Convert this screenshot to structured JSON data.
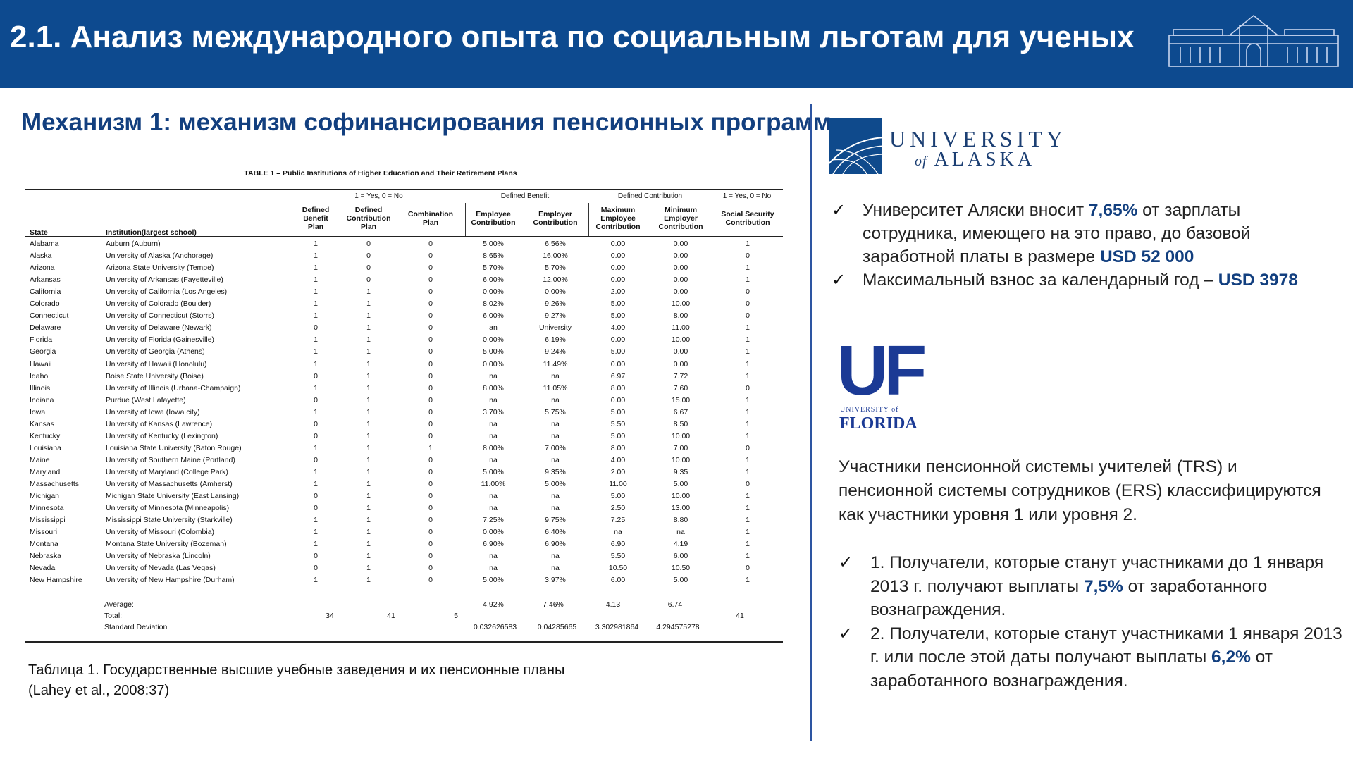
{
  "header": {
    "title": "2.1. Анализ международного опыта по социальным льготам для ученых"
  },
  "subtitle": "Механизм 1: механизм софинансирования пенсионных программ",
  "table": {
    "title": "TABLE 1 – Public Institutions of Higher Education and Their Retirement Plans",
    "groups": [
      "1 = Yes, 0 = No",
      "Defined Benefit",
      "Defined Contribution",
      "1 = Yes, 0 = No"
    ],
    "headers": {
      "state": "State",
      "institution": "Institution(largest school)",
      "db_plan": [
        "Defined",
        "Benefit",
        "Plan"
      ],
      "dc_plan": [
        "Defined",
        "Contribution",
        "Plan"
      ],
      "combo": [
        "Combination",
        "Plan"
      ],
      "emp_contrib": [
        "Employee",
        "Contribution"
      ],
      "empr_contrib": [
        "Employer",
        "Contribution"
      ],
      "max_emp": [
        "Maximum",
        "Employee",
        "Contribution"
      ],
      "min_empr": [
        "Minimum",
        "Employer",
        "Contribution"
      ],
      "ss": [
        "Social Security",
        "Contribution"
      ]
    },
    "rows": [
      [
        "Alabama",
        "Auburn (Auburn)",
        "1",
        "0",
        "0",
        "5.00%",
        "6.56%",
        "0.00",
        "0.00",
        "1"
      ],
      [
        "Alaska",
        "University of Alaska (Anchorage)",
        "1",
        "0",
        "0",
        "8.65%",
        "16.00%",
        "0.00",
        "0.00",
        "0"
      ],
      [
        "Arizona",
        "Arizona State University (Tempe)",
        "1",
        "0",
        "0",
        "5.70%",
        "5.70%",
        "0.00",
        "0.00",
        "1"
      ],
      [
        "Arkansas",
        "University of Arkansas (Fayetteville)",
        "1",
        "0",
        "0",
        "6.00%",
        "12.00%",
        "0.00",
        "0.00",
        "1"
      ],
      [
        "California",
        "University of California (Los Angeles)",
        "1",
        "1",
        "0",
        "0.00%",
        "0.00%",
        "2.00",
        "0.00",
        "0"
      ],
      [
        "Colorado",
        "University of Colorado (Boulder)",
        "1",
        "1",
        "0",
        "8.02%",
        "9.26%",
        "5.00",
        "10.00",
        "0"
      ],
      [
        "Connecticut",
        "University of Connecticut  (Storrs)",
        "1",
        "1",
        "0",
        "6.00%",
        "9.27%",
        "5.00",
        "8.00",
        "0"
      ],
      [
        "Delaware",
        "University of Delaware (Newark)",
        "0",
        "1",
        "0",
        "an",
        "University",
        "4.00",
        "11.00",
        "1"
      ],
      [
        "Florida",
        "University of Florida (Gainesville)",
        "1",
        "1",
        "0",
        "0.00%",
        "6.19%",
        "0.00",
        "10.00",
        "1"
      ],
      [
        "Georgia",
        "University  of Georgia (Athens)",
        "1",
        "1",
        "0",
        "5.00%",
        "9.24%",
        "5.00",
        "0.00",
        "1"
      ],
      [
        "Hawaii",
        "University of Hawaii (Honolulu)",
        "1",
        "1",
        "0",
        "0.00%",
        "11.49%",
        "0.00",
        "0.00",
        "1"
      ],
      [
        "Idaho",
        "Boise State University (Boise)",
        "0",
        "1",
        "0",
        "na",
        "na",
        "6.97",
        "7.72",
        "1"
      ],
      [
        "Illinois",
        "University of Illinois (Urbana-Champaign)",
        "1",
        "1",
        "0",
        "8.00%",
        "11.05%",
        "8.00",
        "7.60",
        "0"
      ],
      [
        "Indiana",
        "Purdue (West Lafayette)",
        "0",
        "1",
        "0",
        "na",
        "na",
        "0.00",
        "15.00",
        "1"
      ],
      [
        "Iowa",
        "University of Iowa (Iowa city)",
        "1",
        "1",
        "0",
        "3.70%",
        "5.75%",
        "5.00",
        "6.67",
        "1"
      ],
      [
        "Kansas",
        "University of Kansas (Lawrence)",
        "0",
        "1",
        "0",
        "na",
        "na",
        "5.50",
        "8.50",
        "1"
      ],
      [
        "Kentucky",
        "University of Kentucky (Lexington)",
        "0",
        "1",
        "0",
        "na",
        "na",
        "5.00",
        "10.00",
        "1"
      ],
      [
        "Louisiana",
        "Louisiana State University (Baton Rouge)",
        "1",
        "1",
        "1",
        "8.00%",
        "7.00%",
        "8.00",
        "7.00",
        "0"
      ],
      [
        "Maine",
        "University of Southern Maine (Portland)",
        "0",
        "1",
        "0",
        "na",
        "na",
        "4.00",
        "10.00",
        "1"
      ],
      [
        "Maryland",
        "University of Maryland (College Park)",
        "1",
        "1",
        "0",
        "5.00%",
        "9.35%",
        "2.00",
        "9.35",
        "1"
      ],
      [
        "Massachusetts",
        "University of Massachusetts (Amherst)",
        "1",
        "1",
        "0",
        "11.00%",
        "5.00%",
        "11.00",
        "5.00",
        "0"
      ],
      [
        "Michigan",
        "Michigan State University (East Lansing)",
        "0",
        "1",
        "0",
        "na",
        "na",
        "5.00",
        "10.00",
        "1"
      ],
      [
        "Minnesota",
        "University of Minnesota (Minneapolis)",
        "0",
        "1",
        "0",
        "na",
        "na",
        "2.50",
        "13.00",
        "1"
      ],
      [
        "Mississippi",
        "Mississippi State University (Starkville)",
        "1",
        "1",
        "0",
        "7.25%",
        "9.75%",
        "7.25",
        "8.80",
        "1"
      ],
      [
        "Missouri",
        "University of Missouri (Colombia)",
        "1",
        "1",
        "0",
        "0.00%",
        "6.40%",
        "na",
        "na",
        "1"
      ],
      [
        "Montana",
        "Montana State University (Bozeman)",
        "1",
        "1",
        "0",
        "6.90%",
        "6.90%",
        "6.90",
        "4.19",
        "1"
      ],
      [
        "Nebraska",
        "University of Nebraska  (Lincoln)",
        "0",
        "1",
        "0",
        "na",
        "na",
        "5.50",
        "6.00",
        "1"
      ],
      [
        "Nevada",
        "University of Nevada (Las Vegas)",
        "0",
        "1",
        "0",
        "na",
        "na",
        "10.50",
        "10.50",
        "0"
      ],
      [
        "New Hampshire",
        "University of New Hampshire (Durham)",
        "1",
        "1",
        "0",
        "5.00%",
        "3.97%",
        "6.00",
        "5.00",
        "1"
      ]
    ],
    "summary": {
      "average_label": "Average:",
      "total_label": "Total:",
      "sd_label": "Standard Deviation",
      "avg": [
        "4.92%",
        "7.46%",
        "4.13",
        "6.74"
      ],
      "totals": [
        "34",
        "41",
        "5",
        "41"
      ],
      "sd": [
        "0.032626583",
        "0.04285665",
        "3.302981864",
        "4.294575278"
      ]
    }
  },
  "caption": {
    "line1": "Таблица 1. Государственные высшие учебные заведения и их пенсионные планы",
    "line2": "(Lahey et al., 2008:37)"
  },
  "alaska": {
    "logo_line1": "UNIVERSITY",
    "logo_of": "of",
    "logo_line2": "ALASKA",
    "b1_pre": "Университет Аляски вносит ",
    "b1_hl1": "7,65%",
    "b1_mid": " от зарплаты сотрудника, имеющего на это право, до базовой заработной платы в размере ",
    "b1_hl2": "USD 52 000",
    "b2_pre": "Максимальный взнос за календарный год – ",
    "b2_hl": "USD 3978"
  },
  "florida": {
    "logo_big": "UF",
    "logo_small": "UNIVERSITY of",
    "logo_name": "FLORIDA",
    "para": "Участники пенсионной системы учителей (TRS) и пенсионной системы сотрудников (ERS) классифицируются как участники уровня 1 или уровня 2.",
    "b1_pre": "1. Получатели, которые станут участниками до 1 января 2013 г. получают выплаты ",
    "b1_hl": "7,5%",
    "b1_post": " от заработанного вознаграждения.",
    "b2_pre": "2. Получатели, которые станут участниками 1 января 2013 г. или после этой даты получают выплаты ",
    "b2_hl": "6,2%",
    "b2_post": " от заработанного вознаграждения."
  },
  "colors": {
    "header_bg": "#0d4a8f",
    "accent": "#123f7f",
    "divider": "#2d55a2"
  }
}
